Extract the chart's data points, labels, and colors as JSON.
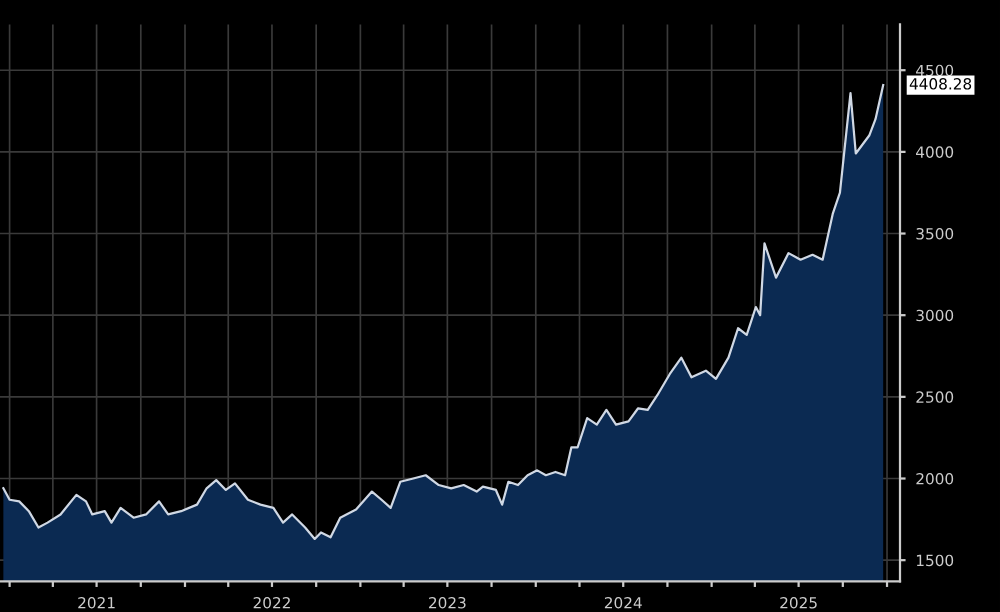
{
  "chart_data": {
    "type": "area",
    "x": [
      "2020-12-19",
      "2021-01-01",
      "2021-01-21",
      "2021-02-10",
      "2021-03-02",
      "2021-03-21",
      "2021-04-17",
      "2021-05-20",
      "2021-06-09",
      "2021-06-22",
      "2021-07-18",
      "2021-08-01",
      "2021-08-20",
      "2021-09-16",
      "2021-10-12",
      "2021-11-08",
      "2021-11-27",
      "2021-12-24",
      "2022-01-26",
      "2022-02-15",
      "2022-03-07",
      "2022-03-27",
      "2022-04-15",
      "2022-05-12",
      "2022-06-07",
      "2022-07-04",
      "2022-07-24",
      "2022-08-12",
      "2022-09-08",
      "2022-09-28",
      "2022-10-11",
      "2022-10-31",
      "2022-11-20",
      "2022-12-23",
      "2023-01-25",
      "2023-02-14",
      "2023-03-05",
      "2023-03-25",
      "2023-04-21",
      "2023-05-17",
      "2023-06-13",
      "2023-07-09",
      "2023-08-04",
      "2023-08-31",
      "2023-09-13",
      "2023-10-10",
      "2023-10-23",
      "2023-11-05",
      "2023-11-25",
      "2023-12-15",
      "2024-01-04",
      "2024-01-22",
      "2024-02-11",
      "2024-03-02",
      "2024-03-15",
      "2024-03-28",
      "2024-04-17",
      "2024-05-07",
      "2024-05-27",
      "2024-06-16",
      "2024-07-12",
      "2024-08-01",
      "2024-08-21",
      "2024-09-10",
      "2024-10-06",
      "2024-10-30",
      "2024-11-20",
      "2024-12-20",
      "2025-01-10",
      "2025-02-05",
      "2025-02-25",
      "2025-03-15",
      "2025-04-03",
      "2025-04-12",
      "2025-04-21",
      "2025-05-15",
      "2025-06-10",
      "2025-07-05",
      "2025-07-30",
      "2025-08-20",
      "2025-09-10",
      "2025-09-25",
      "2025-10-17",
      "2025-10-28",
      "2025-11-25",
      "2025-12-08",
      "2025-12-24"
    ],
    "series": [
      {
        "color": "#0b2a52",
        "values": [
          1940,
          1870,
          1860,
          1800,
          1700,
          1730,
          1780,
          1900,
          1860,
          1780,
          1800,
          1730,
          1820,
          1760,
          1780,
          1860,
          1780,
          1800,
          1840,
          1940,
          1990,
          1930,
          1970,
          1870,
          1840,
          1820,
          1730,
          1780,
          1700,
          1630,
          1670,
          1640,
          1760,
          1810,
          1920,
          1870,
          1820,
          1980,
          2000,
          2020,
          1960,
          1940,
          1960,
          1920,
          1950,
          1930,
          1840,
          1980,
          1960,
          2020,
          2050,
          2020,
          2040,
          2020,
          2190,
          2190,
          2370,
          2330,
          2420,
          2330,
          2350,
          2430,
          2420,
          2510,
          2640,
          2740,
          2620,
          2660,
          2610,
          2740,
          2920,
          2880,
          3050,
          3000,
          3440,
          3230,
          3380,
          3340,
          3370,
          3340,
          3620,
          3750,
          4360,
          3990,
          4100,
          4200,
          4408.28
        ]
      }
    ],
    "xlim": [
      "2020-12-12",
      "2026-01-28"
    ],
    "xticks": [
      {
        "value": "2021-01-01",
        "label": null
      },
      {
        "value": "2021-04-01",
        "label": null
      },
      {
        "value": "2021-07-01",
        "label": "2021"
      },
      {
        "value": "2021-10-01",
        "label": null
      },
      {
        "value": "2022-01-01",
        "label": null
      },
      {
        "value": "2022-04-01",
        "label": null
      },
      {
        "value": "2022-07-01",
        "label": "2022"
      },
      {
        "value": "2022-10-01",
        "label": null
      },
      {
        "value": "2023-01-01",
        "label": null
      },
      {
        "value": "2023-04-01",
        "label": null
      },
      {
        "value": "2023-07-01",
        "label": "2023"
      },
      {
        "value": "2023-10-01",
        "label": null
      },
      {
        "value": "2024-01-01",
        "label": null
      },
      {
        "value": "2024-04-01",
        "label": null
      },
      {
        "value": "2024-07-01",
        "label": "2024"
      },
      {
        "value": "2024-10-01",
        "label": null
      },
      {
        "value": "2025-01-01",
        "label": null
      },
      {
        "value": "2025-04-01",
        "label": null
      },
      {
        "value": "2025-07-01",
        "label": "2025"
      },
      {
        "value": "2025-10-01",
        "label": null
      },
      {
        "value": "2026-01-01",
        "label": null
      }
    ],
    "ylim": [
      1370,
      4780
    ],
    "yticks": [
      1500,
      2000,
      2500,
      3000,
      3500,
      4000,
      4500
    ],
    "grid": true,
    "annotations": [
      {
        "text": "4408.28",
        "x": "2025-12-24",
        "y": 4408.28
      }
    ]
  }
}
